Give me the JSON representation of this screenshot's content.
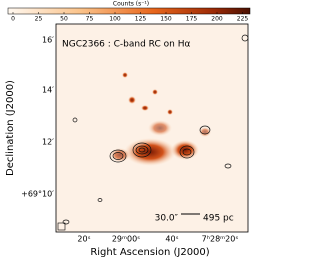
{
  "colorbar": {
    "label": "Counts (s⁻¹)",
    "ticks": [
      0,
      25,
      50,
      75,
      100,
      125,
      150,
      175,
      200,
      225
    ]
  },
  "panel": {
    "title": "NGC2366 : C-band RC on Hα",
    "scale_bar": {
      "angle": "30.0″",
      "length": "495 pc"
    }
  },
  "axes": {
    "y_label": "Declination (J2000)",
    "x_label": "Right Ascension (J2000)",
    "y_ticks": [
      "16′",
      "14′",
      "12′",
      "+69°10′"
    ],
    "x_ticks": [
      "20ˢ",
      "29ᵐ00ˢ",
      "40ˢ",
      "7ʰ28ᵐ20ˢ"
    ]
  }
}
